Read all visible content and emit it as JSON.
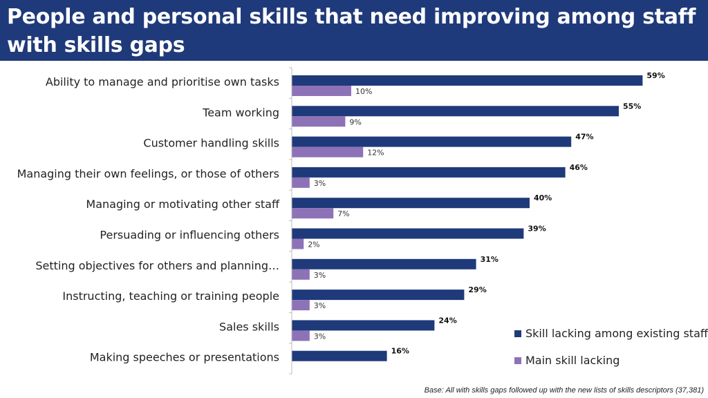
{
  "title": "People and personal skills that need improving among staff with skills gaps",
  "footnote": "Base: All with skills gaps followed up with the new lists of skills descriptors (37,381)",
  "colors": {
    "header_bg": "#1f3a7a",
    "series_existing": "#1f3a7a",
    "series_main": "#8e72b8"
  },
  "chart_data": {
    "type": "bar",
    "orientation": "horizontal",
    "categories": [
      "Ability to manage and prioritise own tasks",
      "Team working",
      "Customer handling skills",
      "Managing their own feelings, or those of others",
      "Managing or motivating other staff",
      "Persuading or influencing others",
      "Setting objectives for others and planning…",
      "Instructing, teaching or training people",
      "Sales skills",
      "Making speeches or presentations"
    ],
    "series": [
      {
        "name": "Skill lacking among existing staff",
        "values": [
          59,
          55,
          47,
          46,
          40,
          39,
          31,
          29,
          24,
          16
        ],
        "labels": [
          "59%",
          "55%",
          "47%",
          "46%",
          "40%",
          "39%",
          "31%",
          "29%",
          "24%",
          "16%"
        ]
      },
      {
        "name": "Main skill lacking",
        "values": [
          10,
          9,
          12,
          3,
          7,
          2,
          3,
          3,
          3,
          null
        ],
        "labels": [
          "10%",
          "9%",
          "12%",
          "3%",
          "7%",
          "2%",
          "3%",
          "3%",
          "3%",
          null
        ]
      }
    ],
    "xlim": [
      0,
      60
    ],
    "grid": false,
    "legend_position": "bottom-right"
  }
}
